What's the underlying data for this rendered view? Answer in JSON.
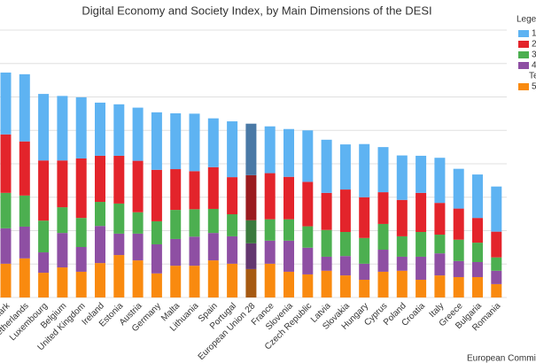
{
  "chart_data": {
    "type": "stacked_bar",
    "title": "Digital Economy and Society Index, by Main Dimensions of the DESI",
    "legend_title": "Legen",
    "legend_subtitle": "Te",
    "source": "European Commissi",
    "categories": [
      "enmark",
      "etherlands",
      "Luxembourg",
      "Belgium",
      "United Kingdom",
      "Ireland",
      "Estonia",
      "Austria",
      "Germany",
      "Malta",
      "Lithuania",
      "Spain",
      "Portugal",
      "European Union 28",
      "France",
      "Slovenia",
      "Czech Republic",
      "Latvia",
      "Slovakia",
      "Hungary",
      "Cyprus",
      "Poland",
      "Croatia",
      "Italy",
      "Greece",
      "Bulgaria",
      "Romania"
    ],
    "series": [
      {
        "name": "1",
        "color": "#5eb3f2",
        "highlight_color": "#4a79a6",
        "values": [
          0.185,
          0.201,
          0.199,
          0.193,
          0.183,
          0.159,
          0.154,
          0.159,
          0.172,
          0.167,
          0.172,
          0.146,
          0.167,
          0.154,
          0.14,
          0.143,
          0.154,
          0.159,
          0.135,
          0.159,
          0.135,
          0.133,
          0.111,
          0.135,
          0.119,
          0.13,
          0.135
        ]
      },
      {
        "name": "2",
        "color": "#e3242b",
        "highlight_color": "#9a1b1f",
        "values": [
          0.175,
          0.162,
          0.18,
          0.14,
          0.178,
          0.138,
          0.143,
          0.154,
          0.154,
          0.122,
          0.114,
          0.125,
          0.111,
          0.135,
          0.138,
          0.127,
          0.133,
          0.111,
          0.127,
          0.122,
          0.095,
          0.109,
          0.117,
          0.095,
          0.093,
          0.074,
          0.077
        ]
      },
      {
        "name": "3",
        "color": "#4caf50",
        "highlight_color": "#3b7a3d",
        "values": [
          0.106,
          0.093,
          0.095,
          0.077,
          0.087,
          0.072,
          0.09,
          0.064,
          0.069,
          0.087,
          0.082,
          0.072,
          0.066,
          0.069,
          0.064,
          0.064,
          0.064,
          0.08,
          0.072,
          0.077,
          0.077,
          0.061,
          0.074,
          0.056,
          0.064,
          0.058,
          0.04
        ]
      },
      {
        "name": "4",
        "color": "#8e4fa3",
        "highlight_color": "#63376f",
        "values": [
          0.106,
          0.095,
          0.061,
          0.103,
          0.074,
          0.111,
          0.064,
          0.08,
          0.087,
          0.08,
          0.087,
          0.082,
          0.082,
          0.077,
          0.069,
          0.093,
          0.08,
          0.042,
          0.058,
          0.048,
          0.066,
          0.042,
          0.069,
          0.066,
          0.048,
          0.045,
          0.04
        ]
      },
      {
        "name": "5",
        "color": "#f98a0f",
        "highlight_color": "#a65a12",
        "values": [
          0.101,
          0.117,
          0.074,
          0.09,
          0.077,
          0.103,
          0.127,
          0.111,
          0.072,
          0.095,
          0.095,
          0.111,
          0.101,
          0.085,
          0.101,
          0.077,
          0.069,
          0.08,
          0.066,
          0.053,
          0.077,
          0.08,
          0.053,
          0.066,
          0.061,
          0.061,
          0.04
        ]
      }
    ],
    "highlight_category": "European Union 28",
    "ylim": [
      0,
      0.8
    ],
    "yticks": [
      0,
      0.1,
      0.2,
      0.3,
      0.4,
      0.5,
      0.6,
      0.7,
      0.8
    ],
    "grid": true
  }
}
